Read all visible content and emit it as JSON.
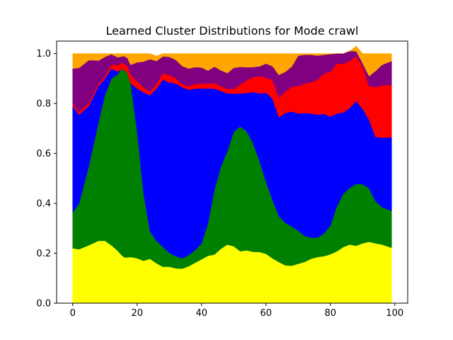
{
  "chart_data": {
    "type": "area",
    "title": "Learned Cluster Distributions for Mode crawl",
    "xlabel": "",
    "ylabel": "",
    "xlim": [
      -5,
      104
    ],
    "ylim": [
      0.0,
      1.05
    ],
    "x_ticks": [
      "0",
      "20",
      "40",
      "60",
      "80",
      "100"
    ],
    "y_ticks": [
      "0.0",
      "0.2",
      "0.4",
      "0.6",
      "0.8",
      "1.0"
    ],
    "grid": false,
    "legend": "none",
    "stacked": true,
    "x": [
      0,
      2,
      5,
      8,
      10,
      12,
      14,
      15,
      16,
      17,
      18,
      20,
      22,
      24,
      26,
      28,
      30,
      32,
      34,
      36,
      38,
      40,
      42,
      44,
      46,
      48,
      50,
      52,
      54,
      56,
      58,
      60,
      62,
      64,
      66,
      68,
      70,
      72,
      74,
      76,
      78,
      80,
      82,
      84,
      86,
      88,
      90,
      92,
      94,
      96,
      99
    ],
    "series": [
      {
        "color": "#ffff00",
        "values": [
          0.22,
          0.216,
          0.232,
          0.25,
          0.25,
          0.232,
          0.21,
          0.195,
          0.184,
          0.183,
          0.185,
          0.18,
          0.17,
          0.178,
          0.16,
          0.146,
          0.146,
          0.14,
          0.138,
          0.148,
          0.162,
          0.176,
          0.19,
          0.195,
          0.218,
          0.235,
          0.228,
          0.208,
          0.212,
          0.206,
          0.205,
          0.198,
          0.18,
          0.165,
          0.152,
          0.15,
          0.158,
          0.165,
          0.178,
          0.185,
          0.188,
          0.196,
          0.208,
          0.225,
          0.235,
          0.23,
          0.24,
          0.246,
          0.24,
          0.235,
          0.222
        ]
      },
      {
        "color": "#008000",
        "values": [
          0.144,
          0.184,
          0.318,
          0.475,
          0.585,
          0.668,
          0.708,
          0.742,
          0.75,
          0.74,
          0.695,
          0.51,
          0.27,
          0.11,
          0.09,
          0.08,
          0.056,
          0.048,
          0.042,
          0.045,
          0.05,
          0.064,
          0.13,
          0.26,
          0.33,
          0.373,
          0.459,
          0.5,
          0.477,
          0.435,
          0.365,
          0.29,
          0.235,
          0.185,
          0.17,
          0.158,
          0.132,
          0.105,
          0.085,
          0.078,
          0.092,
          0.114,
          0.18,
          0.213,
          0.227,
          0.248,
          0.237,
          0.214,
          0.17,
          0.15,
          0.148
        ]
      },
      {
        "color": "#0000ff",
        "values": [
          0.425,
          0.355,
          0.24,
          0.145,
          0.065,
          0.04,
          0.01,
          0.0,
          0.0,
          0.0,
          0.0,
          0.17,
          0.405,
          0.545,
          0.61,
          0.67,
          0.682,
          0.692,
          0.685,
          0.662,
          0.648,
          0.62,
          0.54,
          0.405,
          0.302,
          0.232,
          0.153,
          0.132,
          0.153,
          0.205,
          0.27,
          0.355,
          0.405,
          0.395,
          0.44,
          0.46,
          0.47,
          0.492,
          0.497,
          0.492,
          0.478,
          0.438,
          0.372,
          0.326,
          0.32,
          0.332,
          0.302,
          0.275,
          0.256,
          0.278,
          0.295
        ]
      },
      {
        "color": "#ff0000",
        "values": [
          0.011,
          0.012,
          0.012,
          0.01,
          0.01,
          0.016,
          0.026,
          0.026,
          0.026,
          0.026,
          0.035,
          0.03,
          0.02,
          0.015,
          0.02,
          0.025,
          0.03,
          0.022,
          0.012,
          0.015,
          0.018,
          0.02,
          0.02,
          0.022,
          0.02,
          0.018,
          0.02,
          0.035,
          0.051,
          0.06,
          0.07,
          0.06,
          0.075,
          0.08,
          0.085,
          0.1,
          0.11,
          0.118,
          0.125,
          0.14,
          0.162,
          0.18,
          0.2,
          0.195,
          0.188,
          0.18,
          0.17,
          0.135,
          0.2,
          0.21,
          0.21
        ]
      },
      {
        "color": "#800080",
        "values": [
          0.14,
          0.176,
          0.172,
          0.092,
          0.077,
          0.041,
          0.031,
          0.025,
          0.03,
          0.033,
          0.04,
          0.075,
          0.103,
          0.13,
          0.09,
          0.068,
          0.073,
          0.073,
          0.073,
          0.07,
          0.068,
          0.064,
          0.052,
          0.066,
          0.063,
          0.064,
          0.083,
          0.072,
          0.052,
          0.04,
          0.039,
          0.057,
          0.055,
          0.09,
          0.08,
          0.08,
          0.122,
          0.115,
          0.11,
          0.097,
          0.075,
          0.07,
          0.04,
          0.041,
          0.04,
          0.02,
          0.013,
          0.04,
          0.064,
          0.082,
          0.095
        ]
      },
      {
        "color": "#ffa500",
        "values": [
          0.06,
          0.057,
          0.026,
          0.028,
          0.013,
          0.003,
          0.015,
          0.012,
          0.01,
          0.018,
          0.045,
          0.035,
          0.032,
          0.022,
          0.02,
          0.011,
          0.013,
          0.025,
          0.05,
          0.06,
          0.054,
          0.056,
          0.068,
          0.052,
          0.067,
          0.078,
          0.057,
          0.053,
          0.055,
          0.054,
          0.051,
          0.04,
          0.05,
          0.085,
          0.073,
          0.052,
          0.008,
          0.005,
          0.005,
          0.008,
          0.005,
          0.002,
          0.0,
          0.0,
          0.0,
          0.02,
          0.038,
          0.09,
          0.07,
          0.045,
          0.03
        ]
      }
    ]
  }
}
